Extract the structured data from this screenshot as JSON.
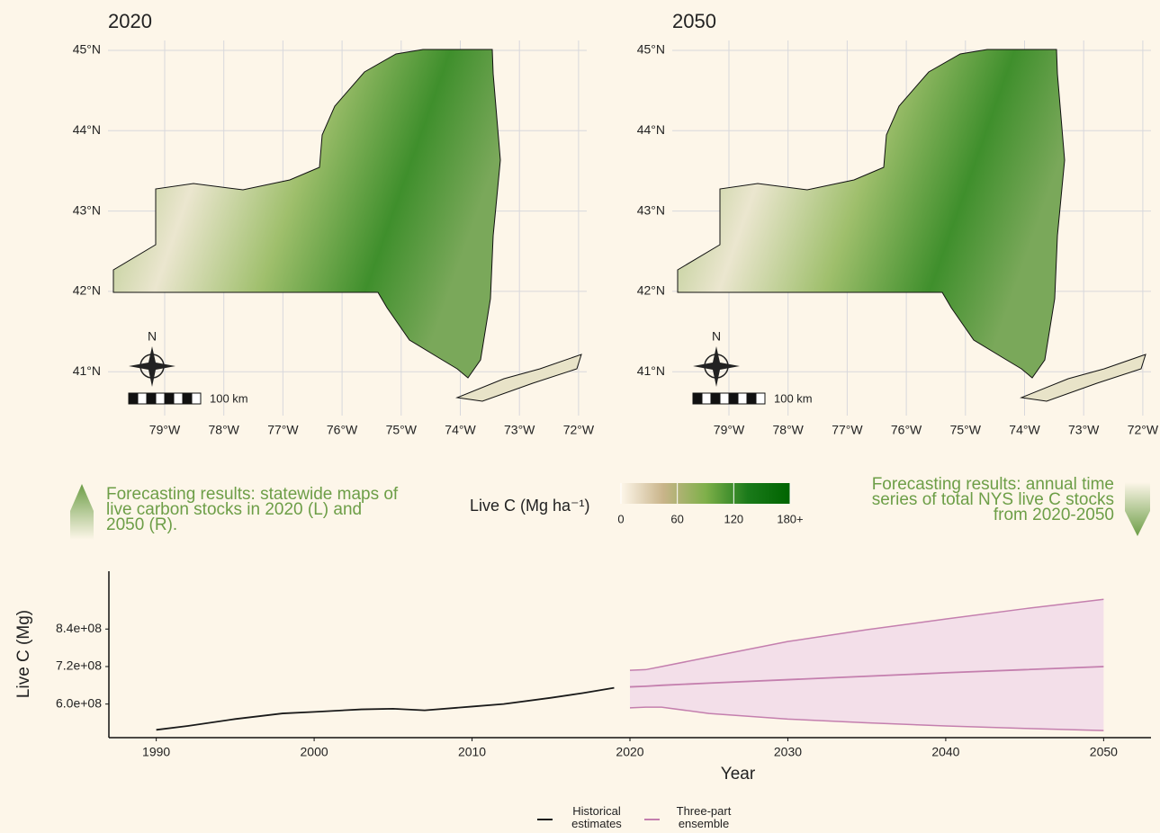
{
  "maps": [
    {
      "title": "2020",
      "lat_labels": [
        "45°N",
        "44°N",
        "43°N",
        "42°N",
        "41°N"
      ],
      "lon_labels": [
        "79°W",
        "78°W",
        "77°W",
        "76°W",
        "75°W",
        "74°W",
        "73°W",
        "72°W"
      ],
      "compass": "N",
      "scale": "100 km"
    },
    {
      "title": "2050",
      "lat_labels": [
        "45°N",
        "44°N",
        "43°N",
        "42°N",
        "41°N"
      ],
      "lon_labels": [
        "79°W",
        "78°W",
        "77°W",
        "76°W",
        "75°W",
        "74°W",
        "73°W",
        "72°W"
      ],
      "compass": "N",
      "scale": "100 km"
    }
  ],
  "captions": {
    "left": "Forecasting results: statewide maps of live carbon stocks in 2020 (L) and 2050 (R).",
    "right": "Forecasting results: annual time series of total NYS live C stocks from 2020-2050"
  },
  "colorbar": {
    "title": "Live C (Mg ha⁻¹)",
    "lim": [
      0,
      180
    ],
    "ticks": [
      0,
      60,
      120,
      {
        "value": 180,
        "label": "180+"
      }
    ],
    "colors": [
      "#fdf6e9",
      "#c9b48a",
      "#7fb04a",
      "#1a7a1a",
      "#006400"
    ]
  },
  "chart_data": {
    "type": "line",
    "x_label": "Year",
    "y_label": "Live C (Mg)",
    "xlim": [
      1987,
      2053
    ],
    "ylim": [
      492500000,
      1025000000
    ],
    "xticks": [
      1990,
      2000,
      2010,
      2020,
      2030,
      2040,
      2050
    ],
    "yticks": [
      {
        "value": 600000000,
        "label": "6.0e+08"
      },
      {
        "value": 720000000,
        "label": "7.2e+08"
      },
      {
        "value": 840000000,
        "label": "8.4e+08"
      }
    ],
    "series": [
      {
        "name": "Historical estimates",
        "color": "#1a1a1a",
        "x": [
          1990,
          1992,
          1995,
          1998,
          2000,
          2003,
          2005,
          2007,
          2010,
          2012,
          2015,
          2017,
          2019
        ],
        "values": [
          517500000,
          530000000,
          552000000,
          570000000,
          575000000,
          583000000,
          585000000,
          580000000,
          592000000,
          600000000,
          620000000,
          635000000,
          652000000
        ]
      },
      {
        "name": "Three-part ensemble",
        "color": "#c47fae",
        "fill": "#f3dfe9",
        "x": [
          2020,
          2021,
          2022,
          2025,
          2030,
          2035,
          2040,
          2045,
          2050
        ],
        "values": [
          655000000,
          657000000,
          660000000,
          667000000,
          678000000,
          689000000,
          700000000,
          710000000,
          720000000
        ],
        "upper": [
          708000000,
          710000000,
          720000000,
          750000000,
          800000000,
          838000000,
          872000000,
          905000000,
          935000000
        ],
        "lower": [
          588000000,
          590000000,
          590000000,
          570000000,
          552000000,
          540000000,
          530000000,
          522000000,
          515000000
        ]
      }
    ]
  }
}
